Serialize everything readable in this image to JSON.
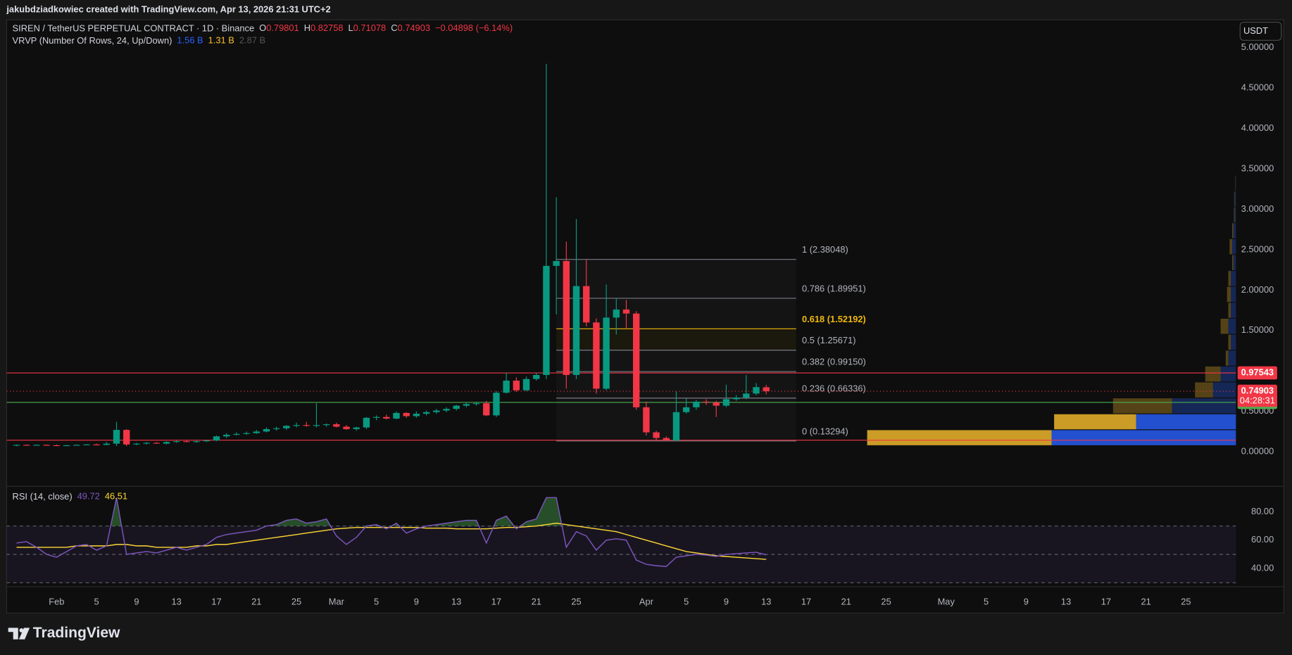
{
  "chart_data": {
    "type": "candlestick",
    "watermark": "jakubdziadkowiec created with TradingView.com, Apr 13, 2026 21:31 UTC+2",
    "title": "SIREN / TetherUS PERPETUAL CONTRACT · 1D · Binance",
    "ohlc_letters": [
      "O",
      "H",
      "L",
      "C"
    ],
    "change_label": "−0.04898 (−6.14%)",
    "currency": "USDT",
    "countdown": "04:28:31",
    "footer_logo": "TradingView",
    "up_color": "#089981",
    "down_color": "#f23645",
    "x": [
      "2026-01-28",
      "2026-01-29",
      "2026-01-30",
      "2026-01-31",
      "2026-02-01",
      "2026-02-02",
      "2026-02-03",
      "2026-02-04",
      "2026-02-05",
      "2026-02-06",
      "2026-02-07",
      "2026-02-08",
      "2026-02-09",
      "2026-02-10",
      "2026-02-11",
      "2026-02-12",
      "2026-02-13",
      "2026-02-14",
      "2026-02-15",
      "2026-02-16",
      "2026-02-17",
      "2026-02-18",
      "2026-02-19",
      "2026-02-20",
      "2026-02-21",
      "2026-02-22",
      "2026-02-23",
      "2026-02-24",
      "2026-02-25",
      "2026-02-26",
      "2026-02-27",
      "2026-02-28",
      "2026-03-01",
      "2026-03-02",
      "2026-03-03",
      "2026-03-04",
      "2026-03-05",
      "2026-03-06",
      "2026-03-07",
      "2026-03-08",
      "2026-03-09",
      "2026-03-10",
      "2026-03-11",
      "2026-03-12",
      "2026-03-13",
      "2026-03-14",
      "2026-03-15",
      "2026-03-16",
      "2026-03-17",
      "2026-03-18",
      "2026-03-19",
      "2026-03-20",
      "2026-03-21",
      "2026-03-22",
      "2026-03-23",
      "2026-03-24",
      "2026-03-25",
      "2026-03-26",
      "2026-03-27",
      "2026-03-28",
      "2026-03-29",
      "2026-03-30",
      "2026-03-31",
      "2026-04-01",
      "2026-04-02",
      "2026-04-03",
      "2026-04-04",
      "2026-04-05",
      "2026-04-06",
      "2026-04-07",
      "2026-04-08",
      "2026-04-09",
      "2026-04-10",
      "2026-04-11",
      "2026-04-12",
      "2026-04-13"
    ],
    "open": [
      0.08,
      0.085,
      0.08,
      0.085,
      0.08,
      0.075,
      0.08,
      0.085,
      0.09,
      0.085,
      0.1,
      0.27,
      0.09,
      0.1,
      0.11,
      0.1,
      0.12,
      0.13,
      0.12,
      0.13,
      0.14,
      0.19,
      0.21,
      0.22,
      0.23,
      0.25,
      0.28,
      0.29,
      0.32,
      0.33,
      0.32,
      0.33,
      0.34,
      0.31,
      0.28,
      0.3,
      0.42,
      0.43,
      0.41,
      0.48,
      0.44,
      0.47,
      0.49,
      0.51,
      0.53,
      0.57,
      0.59,
      0.6,
      0.45,
      0.73,
      0.88,
      0.76,
      0.9,
      0.95,
      2.3,
      2.36,
      0.95,
      2.05,
      1.6,
      0.78,
      1.66,
      1.76,
      1.71,
      0.55,
      0.24,
      0.17,
      0.14,
      0.49,
      0.55,
      0.62,
      0.61,
      0.57,
      0.65,
      0.67,
      0.72,
      0.79801
    ],
    "high": [
      0.09,
      0.09,
      0.09,
      0.09,
      0.09,
      0.085,
      0.09,
      0.095,
      0.1,
      0.12,
      0.37,
      0.28,
      0.11,
      0.12,
      0.12,
      0.13,
      0.14,
      0.15,
      0.14,
      0.15,
      0.2,
      0.23,
      0.24,
      0.25,
      0.27,
      0.3,
      0.31,
      0.33,
      0.36,
      0.37,
      0.6,
      0.35,
      0.36,
      0.33,
      0.31,
      0.43,
      0.45,
      0.46,
      0.5,
      0.49,
      0.5,
      0.51,
      0.53,
      0.55,
      0.58,
      0.61,
      0.62,
      0.63,
      0.75,
      0.98,
      0.92,
      0.93,
      0.98,
      4.8,
      3.15,
      2.6,
      2.88,
      2.38,
      1.65,
      2.07,
      1.9,
      1.88,
      1.74,
      0.62,
      0.26,
      0.19,
      0.75,
      0.66,
      0.64,
      0.65,
      0.63,
      0.83,
      0.7,
      0.95,
      0.85,
      0.82758
    ],
    "low": [
      0.07,
      0.075,
      0.075,
      0.08,
      0.07,
      0.07,
      0.075,
      0.08,
      0.08,
      0.08,
      0.07,
      0.07,
      0.08,
      0.09,
      0.1,
      0.09,
      0.11,
      0.12,
      0.11,
      0.12,
      0.13,
      0.17,
      0.2,
      0.21,
      0.22,
      0.24,
      0.26,
      0.27,
      0.3,
      0.31,
      0.3,
      0.31,
      0.3,
      0.27,
      0.26,
      0.28,
      0.39,
      0.4,
      0.4,
      0.42,
      0.42,
      0.45,
      0.47,
      0.49,
      0.51,
      0.55,
      0.57,
      0.44,
      0.43,
      0.72,
      0.74,
      0.75,
      0.88,
      0.9,
      1.7,
      0.78,
      0.9,
      1.55,
      0.72,
      0.76,
      1.45,
      1.53,
      0.52,
      0.2,
      0.14,
      0.13,
      0.13,
      0.47,
      0.52,
      0.58,
      0.43,
      0.55,
      0.63,
      0.65,
      0.7,
      0.71078
    ],
    "close": [
      0.085,
      0.08,
      0.085,
      0.08,
      0.075,
      0.08,
      0.085,
      0.09,
      0.085,
      0.1,
      0.27,
      0.09,
      0.1,
      0.11,
      0.1,
      0.12,
      0.13,
      0.12,
      0.13,
      0.14,
      0.19,
      0.21,
      0.22,
      0.23,
      0.25,
      0.28,
      0.29,
      0.32,
      0.33,
      0.32,
      0.33,
      0.34,
      0.31,
      0.28,
      0.3,
      0.42,
      0.43,
      0.41,
      0.48,
      0.44,
      0.47,
      0.49,
      0.51,
      0.53,
      0.57,
      0.59,
      0.6,
      0.45,
      0.73,
      0.88,
      0.76,
      0.9,
      0.95,
      2.3,
      2.36,
      0.95,
      2.05,
      1.6,
      0.78,
      1.66,
      1.76,
      1.71,
      0.55,
      0.24,
      0.17,
      0.14,
      0.49,
      0.55,
      0.62,
      0.61,
      0.57,
      0.65,
      0.67,
      0.72,
      0.8,
      0.74903
    ],
    "xlim": [
      "2026-01-27",
      "2026-05-30"
    ],
    "xticks": [
      {
        "value": "2026-02-01",
        "label": "Feb"
      },
      {
        "value": "2026-02-05",
        "label": "5"
      },
      {
        "value": "2026-02-09",
        "label": "9"
      },
      {
        "value": "2026-02-13",
        "label": "13"
      },
      {
        "value": "2026-02-17",
        "label": "17"
      },
      {
        "value": "2026-02-21",
        "label": "21"
      },
      {
        "value": "2026-02-25",
        "label": "25"
      },
      {
        "value": "2026-03-01",
        "label": "Mar"
      },
      {
        "value": "2026-03-05",
        "label": "5"
      },
      {
        "value": "2026-03-09",
        "label": "9"
      },
      {
        "value": "2026-03-13",
        "label": "13"
      },
      {
        "value": "2026-03-17",
        "label": "17"
      },
      {
        "value": "2026-03-21",
        "label": "21"
      },
      {
        "value": "2026-03-25",
        "label": "25"
      },
      {
        "value": "2026-04-01",
        "label": "Apr"
      },
      {
        "value": "2026-04-05",
        "label": "5"
      },
      {
        "value": "2026-04-09",
        "label": "9"
      },
      {
        "value": "2026-04-13",
        "label": "13"
      },
      {
        "value": "2026-04-17",
        "label": "17"
      },
      {
        "value": "2026-04-21",
        "label": "21"
      },
      {
        "value": "2026-04-25",
        "label": "25"
      },
      {
        "value": "2026-05-01",
        "label": "May"
      },
      {
        "value": "2026-05-05",
        "label": "5"
      },
      {
        "value": "2026-05-09",
        "label": "9"
      },
      {
        "value": "2026-05-13",
        "label": "13"
      },
      {
        "value": "2026-05-17",
        "label": "17"
      },
      {
        "value": "2026-05-21",
        "label": "21"
      },
      {
        "value": "2026-05-25",
        "label": "25"
      }
    ],
    "ylim": [
      -0.428,
      5.346
    ],
    "yticks": [
      {
        "value": 0,
        "label": "0.00000"
      },
      {
        "value": 0.5,
        "label": "0.50000"
      },
      {
        "value": 1,
        "label": "1.00000"
      },
      {
        "value": 1.5,
        "label": "1.50000"
      },
      {
        "value": 2,
        "label": "2.00000"
      },
      {
        "value": 2.5,
        "label": "2.50000"
      },
      {
        "value": 3,
        "label": "3.00000"
      },
      {
        "value": 3.5,
        "label": "3.50000"
      },
      {
        "value": 4,
        "label": "4.00000"
      },
      {
        "value": 4.5,
        "label": "4.50000"
      },
      {
        "value": 5,
        "label": "5.00000"
      }
    ],
    "grid": false,
    "hlines": [
      {
        "value": 0.97543,
        "color": "#f23645",
        "show_label": true
      },
      {
        "value": 0.61043,
        "color": "#4caf50",
        "show_label": true
      },
      {
        "value": 0.1426,
        "color": "#f23645",
        "show_label": false
      }
    ],
    "fib": {
      "x": [
        "2026-03-23",
        "2026-04-16"
      ],
      "levels": [
        {
          "value": 2.38048,
          "label": "1 (2.38048)",
          "color": "#787b86"
        },
        {
          "value": 1.89951,
          "label": "0.786 (1.89951)",
          "color": "#787b86"
        },
        {
          "value": 1.52192,
          "label": "0.618 (1.52192)",
          "color": "#f0b90b"
        },
        {
          "value": 1.25671,
          "label": "0.5 (1.25671)",
          "color": "#787b86"
        },
        {
          "value": 0.9915,
          "label": "0.382 (0.99150)",
          "color": "#787b86"
        },
        {
          "value": 0.66336,
          "label": "0.236 (0.66336)",
          "color": "#787b86"
        },
        {
          "value": 0.13294,
          "label": "0 (0.13294)",
          "color": "#787b86"
        }
      ]
    },
    "volume_profile": {
      "name": "VRVP (Number Of Rows, 24, Up/Down)",
      "totals": [
        "1.56 B",
        "1.31 B",
        "2.87 B"
      ],
      "totals_colors": [
        "#2962ff",
        "#fbc02d",
        "#555555"
      ],
      "bins": [
        0.07,
        0.267,
        0.464,
        0.661,
        0.858,
        1.055,
        1.252,
        1.449,
        1.646,
        1.843,
        2.04,
        2.237,
        2.434,
        2.631,
        2.828,
        3.025,
        3.222,
        3.419,
        3.616,
        3.813,
        4.01,
        4.207,
        4.404,
        4.601,
        4.8
      ],
      "up": [
        0.72,
        0.39,
        0.25,
        0.09,
        0.06,
        0.03,
        0.02,
        0.03,
        0.02,
        0.02,
        0.02,
        0.01,
        0.015,
        0.01,
        0.005,
        0.005,
        0.002,
        0,
        0,
        0,
        0,
        0,
        0,
        0
      ],
      "down": [
        0.72,
        0.32,
        0.23,
        0.07,
        0.06,
        0.01,
        0.01,
        0.03,
        0.01,
        0.015,
        0.01,
        0.005,
        0.01,
        0.005,
        0.003,
        0.002,
        0.001,
        0,
        0,
        0,
        0,
        0,
        0,
        0
      ],
      "up_color": "#2962ff",
      "down_color": "#fbc02d",
      "value_area": [
        0.07,
        0.464
      ]
    },
    "rsi": {
      "name": "RSI (14, close)",
      "color": "#7e57c2",
      "ma_color": "#fdd835",
      "values": [
        58,
        59,
        55,
        50,
        48,
        52,
        56,
        57,
        53,
        56,
        90,
        50,
        51,
        52,
        51,
        53,
        55,
        53,
        55,
        57,
        62,
        64,
        65,
        66,
        67,
        70,
        71,
        74,
        75,
        72,
        73,
        75,
        63,
        57,
        62,
        70,
        71,
        68,
        72,
        65,
        68,
        70,
        71,
        72,
        73,
        74,
        74,
        58,
        74,
        77,
        68,
        73,
        75,
        90,
        90,
        55,
        66,
        63,
        53,
        60,
        61,
        60,
        46,
        43,
        42,
        41.5,
        48,
        49,
        50,
        49.5,
        48.5,
        50,
        50.5,
        51,
        51.5,
        49.72
      ],
      "ma": [
        55,
        55,
        55,
        55,
        55,
        55,
        56,
        56,
        56,
        56,
        57,
        57,
        56,
        56,
        55,
        55,
        55,
        55,
        56,
        56,
        57,
        57,
        58,
        59,
        60,
        61,
        62,
        63,
        64,
        65,
        66,
        67,
        68,
        68.5,
        69,
        69,
        69,
        69,
        69,
        69,
        69,
        68.5,
        68.5,
        68.5,
        68,
        68,
        68,
        68,
        68.5,
        69,
        69,
        69.5,
        70,
        71,
        72,
        71,
        70,
        69,
        68,
        67,
        66,
        64,
        62,
        60,
        58,
        56,
        54,
        52,
        51,
        50,
        49,
        48.5,
        48,
        47.5,
        47,
        46.51
      ],
      "ylim": [
        27.8,
        97.4
      ],
      "yticks": [
        {
          "value": 40,
          "label": "40.00"
        },
        {
          "value": 60,
          "label": "60.00"
        },
        {
          "value": 80,
          "label": "80.00"
        }
      ],
      "bands": [
        70,
        50,
        30
      ]
    }
  }
}
